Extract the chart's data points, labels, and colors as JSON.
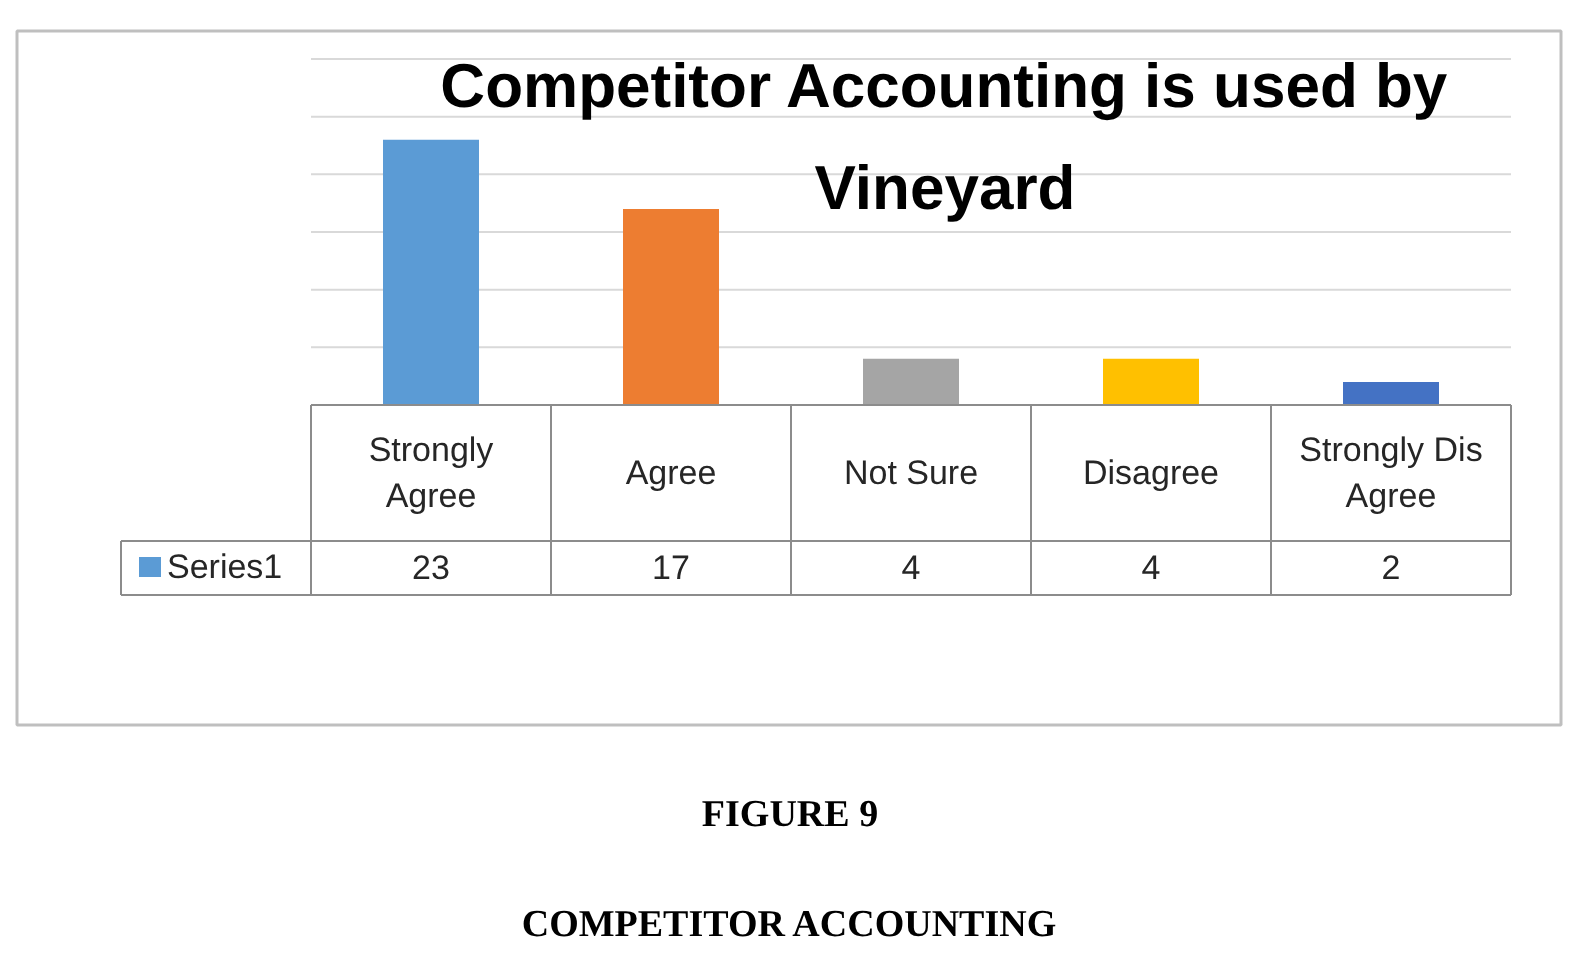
{
  "chart_data": {
    "type": "bar",
    "title": "Competitor Accounting is used by Vineyard",
    "categories": [
      "Strongly Agree",
      "Agree",
      "Not Sure",
      "Disagree",
      "Strongly Dis Agree"
    ],
    "series": [
      {
        "name": "Series1",
        "color": "#5b9bd5",
        "colors": [
          "#5b9bd5",
          "#ed7d31",
          "#a5a5a5",
          "#ffc000",
          "#4472c4"
        ],
        "values": [
          23,
          17,
          4,
          4,
          2
        ]
      }
    ],
    "ylim": [
      0,
      30
    ],
    "yticks": [
      {
        "value": 0,
        "label": null
      },
      {
        "value": 5,
        "label": null
      },
      {
        "value": 10,
        "label": null
      },
      {
        "value": 15,
        "label": null
      },
      {
        "value": 20,
        "label": null
      },
      {
        "value": 25,
        "label": null
      },
      {
        "value": 30,
        "label": null
      }
    ],
    "grid": "y",
    "data_labels": true,
    "annotations": [
      "FIGURE 9",
      "COMPETITOR ACCOUNTING"
    ]
  }
}
